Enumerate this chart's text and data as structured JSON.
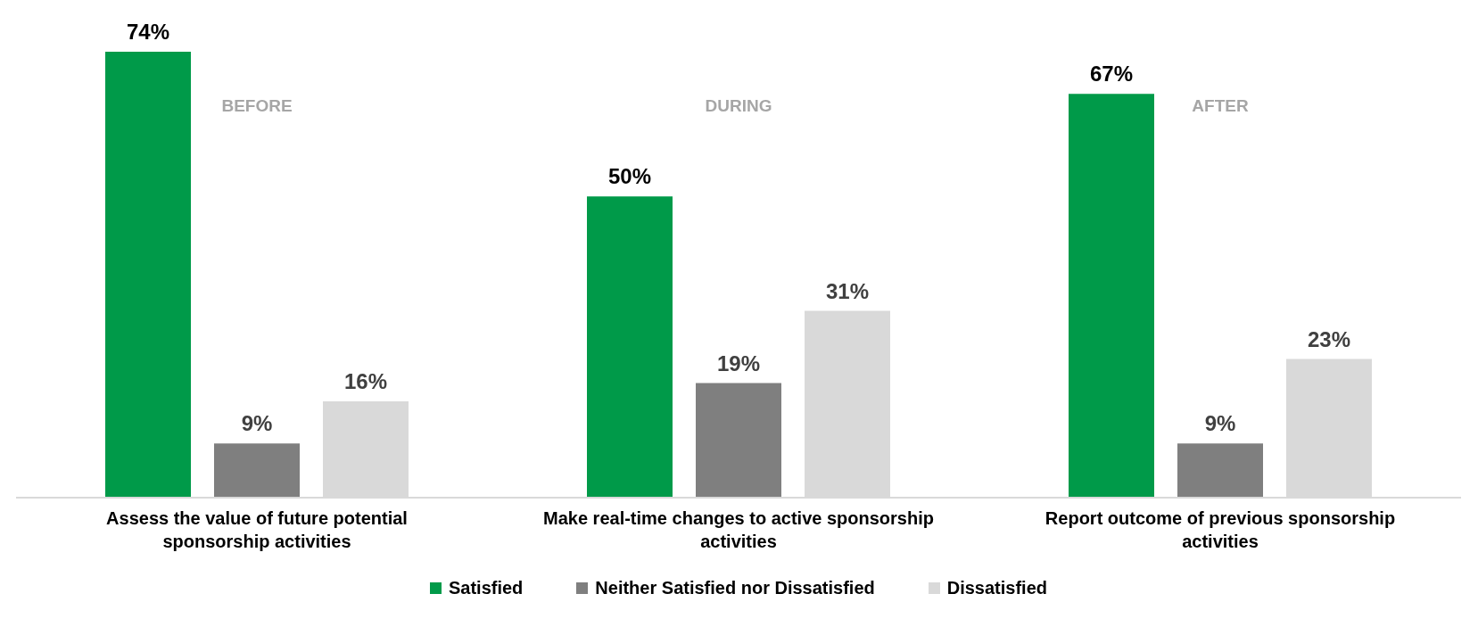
{
  "chart_data": {
    "type": "bar",
    "categories": [
      "Assess the value of future potential sponsorship activities",
      "Make real-time changes to active sponsorship activities",
      "Report outcome of previous sponsorship activities"
    ],
    "series": [
      {
        "name": "Satisfied",
        "color": "#009a49",
        "values": [
          74,
          50,
          67
        ],
        "value_labels": [
          "74%",
          "50%",
          "67%"
        ]
      },
      {
        "name": "Neither Satisfied nor Dissatisfied",
        "color": "#7f7f7f",
        "values": [
          9,
          19,
          9
        ],
        "value_labels": [
          "9%",
          "19%",
          "9%"
        ]
      },
      {
        "name": "Dissatisfied",
        "color": "#d9d9d9",
        "values": [
          16,
          31,
          23
        ],
        "value_labels": [
          "16%",
          "31%",
          "23%"
        ]
      }
    ],
    "annotations": [
      "BEFORE",
      "DURING",
      "AFTER"
    ],
    "legend": "bottom",
    "grid": false
  }
}
